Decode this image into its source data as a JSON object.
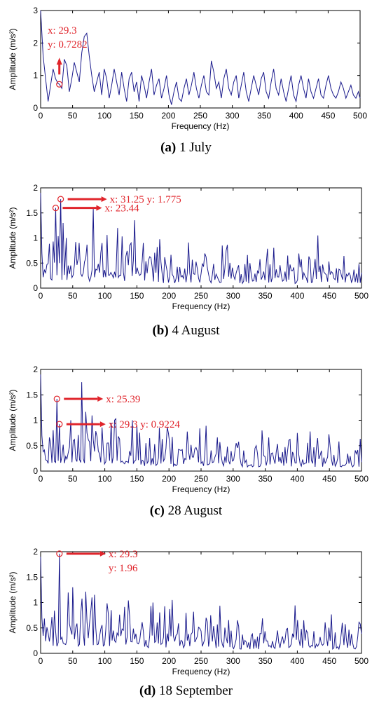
{
  "chart_data": [
    {
      "type": "line",
      "caption_letter": "(a)",
      "caption_text": "1 July",
      "xlabel": "Frequency (Hz)",
      "ylabel": "Amplitude (m/s²)",
      "xlim": [
        0,
        500
      ],
      "ylim": [
        0,
        3
      ],
      "xticks": [
        0,
        50,
        100,
        150,
        200,
        250,
        300,
        350,
        400,
        450,
        500
      ],
      "yticks": [
        0,
        1,
        2,
        3
      ],
      "line_color": "#1a1a8c",
      "x": [
        0,
        3.9,
        7.8,
        11.7,
        15.6,
        19.5,
        23.4,
        27.3,
        29.3,
        33.2,
        37.1,
        41.0,
        44.9,
        48.8,
        52.7,
        56.6,
        60.5,
        64.4,
        68.3,
        72.2,
        76.1,
        80.0,
        83.9,
        87.8,
        91.7,
        95.6,
        99.5,
        103.4,
        107.3,
        111.2,
        115.1,
        119.0,
        122.9,
        126.8,
        130.7,
        134.6,
        138.5,
        142.4,
        146.3,
        150.2,
        154.1,
        158.0,
        161.9,
        165.8,
        169.7,
        173.6,
        177.5,
        181.4,
        185.3,
        189.2,
        193.1,
        197.0,
        200.9,
        204.8,
        208.7,
        212.6,
        216.5,
        220.4,
        224.3,
        228.2,
        232.1,
        236.0,
        239.9,
        243.8,
        247.7,
        251.6,
        255.5,
        259.4,
        263.3,
        267.2,
        271.1,
        275.0,
        278.9,
        282.8,
        286.7,
        290.6,
        294.5,
        298.4,
        302.3,
        306.2,
        310.1,
        314.0,
        317.9,
        321.8,
        325.7,
        329.6,
        333.5,
        337.4,
        341.3,
        345.2,
        349.1,
        353.0,
        356.9,
        360.8,
        364.7,
        368.6,
        372.5,
        376.4,
        380.3,
        384.2,
        388.1,
        392.0,
        395.9,
        399.8,
        403.7,
        407.6,
        411.5,
        415.4,
        419.3,
        423.2,
        427.1,
        431.0,
        434.9,
        438.8,
        442.7,
        446.6,
        450.5,
        454.4,
        458.3,
        462.2,
        466.1,
        470.0,
        473.9,
        477.8,
        481.7,
        485.6,
        489.5,
        493.4,
        497.3,
        500
      ],
      "y": [
        3.0,
        1.6,
        0.9,
        0.2,
        0.7,
        1.2,
        0.9,
        0.75,
        0.73,
        0.6,
        1.5,
        1.3,
        0.5,
        0.9,
        1.4,
        1.1,
        0.8,
        1.7,
        2.2,
        2.3,
        1.6,
        1.0,
        0.5,
        0.8,
        1.1,
        0.4,
        1.2,
        0.9,
        0.3,
        0.7,
        1.2,
        0.8,
        0.4,
        1.1,
        0.6,
        0.2,
        0.9,
        1.1,
        0.5,
        0.8,
        0.2,
        1.0,
        0.7,
        0.3,
        0.8,
        1.2,
        0.4,
        0.7,
        0.9,
        0.3,
        0.6,
        1.0,
        0.4,
        0.1,
        0.5,
        0.8,
        0.3,
        0.2,
        0.6,
        0.9,
        0.4,
        0.7,
        1.1,
        0.6,
        0.3,
        0.7,
        1.0,
        0.5,
        0.4,
        1.45,
        1.1,
        0.6,
        0.8,
        0.3,
        0.9,
        1.2,
        0.6,
        0.4,
        0.8,
        1.0,
        0.3,
        0.7,
        1.1,
        0.5,
        0.2,
        0.6,
        1.0,
        0.7,
        0.4,
        0.9,
        1.1,
        0.5,
        0.3,
        0.8,
        1.2,
        0.6,
        0.4,
        0.9,
        0.5,
        0.2,
        0.6,
        1.0,
        0.4,
        0.2,
        0.7,
        1.0,
        0.6,
        0.3,
        0.9,
        0.5,
        0.3,
        0.6,
        0.9,
        0.4,
        0.3,
        0.7,
        1.0,
        0.6,
        0.4,
        0.3,
        0.5,
        0.8,
        0.6,
        0.3,
        0.5,
        0.7,
        0.4,
        0.3,
        0.5,
        0.3
      ],
      "annotations": [
        {
          "marker": [
            29.3,
            0.7282
          ],
          "lines": [
            "x: 29.3",
            "y: 0.7282"
          ]
        }
      ]
    },
    {
      "type": "line",
      "caption_letter": "(b)",
      "caption_text": "4 August",
      "xlabel": "Frequency (Hz)",
      "ylabel": "Amplitude (m/s²)",
      "xlim": [
        0,
        500
      ],
      "ylim": [
        0,
        2
      ],
      "xticks": [
        0,
        50,
        100,
        150,
        200,
        250,
        300,
        350,
        400,
        450,
        500
      ],
      "yticks": [
        0,
        0.5,
        1,
        1.5,
        2
      ],
      "line_color": "#1a1a8c",
      "seed": 11,
      "peaks": [
        [
          23.44,
          1.6
        ],
        [
          31.25,
          1.775
        ],
        [
          35.0,
          1.3
        ],
        [
          40.0,
          1.0
        ],
        [
          82.0,
          1.58
        ],
        [
          60.0,
          0.9
        ],
        [
          120.0,
          1.2
        ],
        [
          141.0,
          0.9
        ],
        [
          160.0,
          0.9
        ],
        [
          283.0,
          0.85
        ],
        [
          432.0,
          1.05
        ],
        [
          385.0,
          0.65
        ]
      ],
      "annotations": [
        {
          "marker": [
            31.25,
            1.775
          ],
          "lines": [
            "x: 31.25  y: 1.775"
          ]
        },
        {
          "marker": [
            23.44,
            1.6
          ],
          "lines": [
            "x: 23.44"
          ]
        }
      ]
    },
    {
      "type": "line",
      "caption_letter": "(c)",
      "caption_text": "28 August",
      "xlabel": "Frequency (Hz)",
      "ylabel": "Amplitude (m/s²)",
      "xlim": [
        0,
        500
      ],
      "ylim": [
        0,
        2
      ],
      "xticks": [
        0,
        50,
        100,
        150,
        200,
        250,
        300,
        350,
        400,
        450,
        500
      ],
      "yticks": [
        0,
        0.5,
        1,
        1.5,
        2
      ],
      "line_color": "#1a1a8c",
      "seed": 23,
      "peaks": [
        [
          25.39,
          1.42
        ],
        [
          29.3,
          0.9224
        ],
        [
          64.0,
          1.75
        ],
        [
          47.0,
          1.0
        ],
        [
          110.0,
          0.95
        ],
        [
          143.0,
          1.0
        ],
        [
          150.0,
          0.9
        ],
        [
          185.0,
          0.85
        ],
        [
          345.0,
          0.8
        ],
        [
          400.0,
          0.75
        ]
      ],
      "annotations": [
        {
          "marker": [
            25.39,
            1.42
          ],
          "lines": [
            "x: 25.39"
          ]
        },
        {
          "marker": [
            29.3,
            0.9224
          ],
          "lines": [
            "x: 29.3  y: 0.9224"
          ]
        }
      ]
    },
    {
      "type": "line",
      "caption_letter": "(d)",
      "caption_text": "18 September",
      "xlabel": "Frequency (Hz)",
      "ylabel": "Amplitude (m/s²)",
      "xlim": [
        0,
        500
      ],
      "ylim": [
        0,
        2
      ],
      "xticks": [
        0,
        50,
        100,
        150,
        200,
        250,
        300,
        350,
        400,
        450,
        500
      ],
      "yticks": [
        0,
        0.5,
        1,
        1.5,
        2
      ],
      "line_color": "#1a1a8c",
      "seed": 37,
      "peaks": [
        [
          29.3,
          1.96
        ],
        [
          50.0,
          1.3
        ],
        [
          80.0,
          1.1
        ],
        [
          175.0,
          1.0
        ],
        [
          205.0,
          1.05
        ],
        [
          110.0,
          0.85
        ],
        [
          265.0,
          0.75
        ],
        [
          410.0,
          0.65
        ],
        [
          470.0,
          0.6
        ]
      ],
      "annotations": [
        {
          "marker": [
            29.3,
            1.96
          ],
          "lines": [
            "x: 29.3",
            "y: 1.96"
          ]
        }
      ]
    }
  ]
}
